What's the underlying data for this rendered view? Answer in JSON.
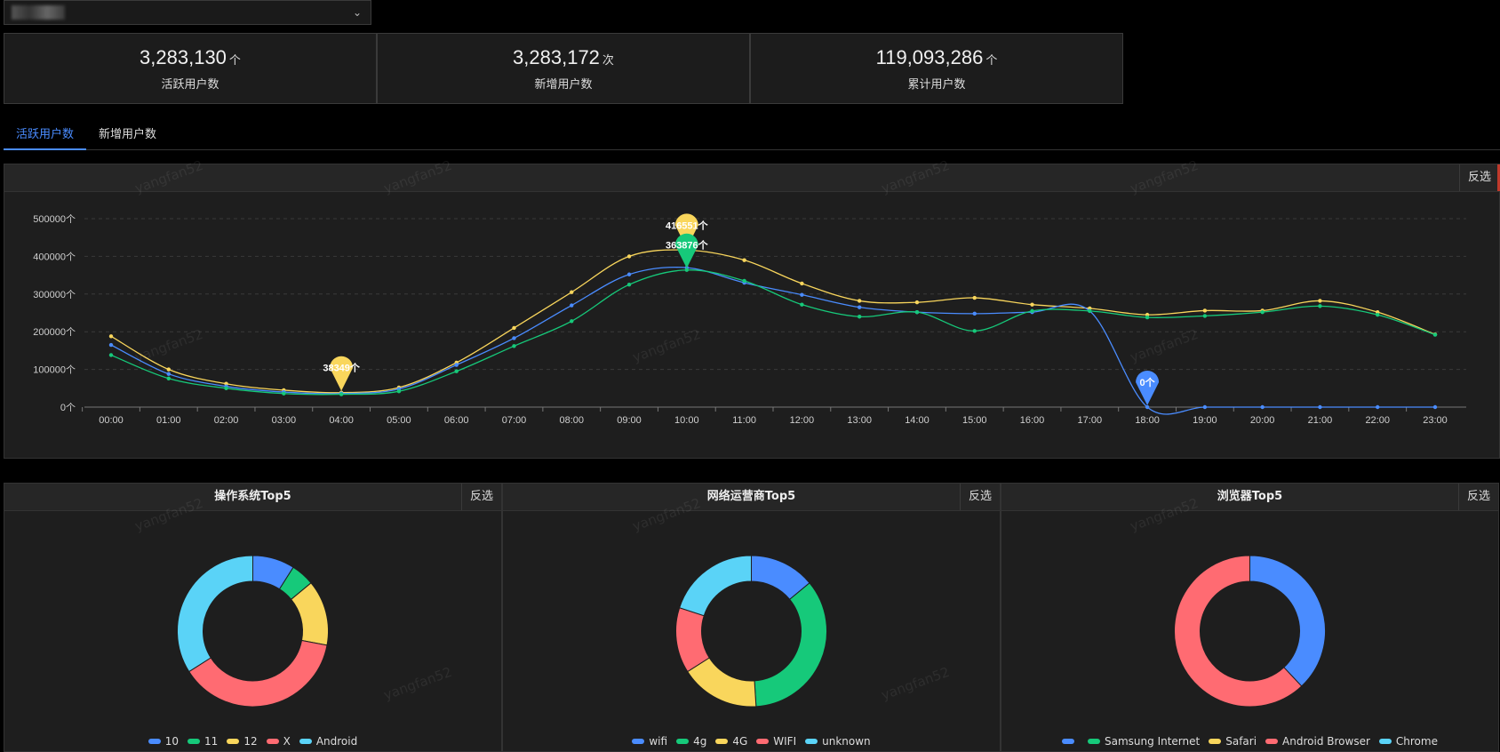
{
  "stats": [
    {
      "value": "3,283,130",
      "unit": "个",
      "label": "活跃用户数"
    },
    {
      "value": "3,283,172",
      "unit": "次",
      "label": "新增用户数"
    },
    {
      "value": "119,093,286",
      "unit": "个",
      "label": "累计用户数"
    }
  ],
  "tabs": [
    {
      "label": "活跃用户数",
      "active": true
    },
    {
      "label": "新增用户数",
      "active": false
    }
  ],
  "invert_label": "反选",
  "watermark": "yangfan52",
  "colors": {
    "blue": "#4a8cff",
    "green": "#16c97a",
    "yellow": "#f9d65c",
    "red": "#ff6b72",
    "cyan": "#5ad3f7"
  },
  "chart_data": [
    {
      "type": "line",
      "categories": [
        "00:00",
        "01:00",
        "02:00",
        "03:00",
        "04:00",
        "05:00",
        "06:00",
        "07:00",
        "08:00",
        "09:00",
        "10:00",
        "11:00",
        "12:00",
        "13:00",
        "14:00",
        "15:00",
        "16:00",
        "17:00",
        "18:00",
        "19:00",
        "20:00",
        "21:00",
        "22:00",
        "23:00"
      ],
      "yticks": [
        0,
        100000,
        200000,
        300000,
        400000,
        500000
      ],
      "ytick_suffix": "个",
      "ylim": [
        0,
        500000
      ],
      "series": [
        {
          "color": "#f9d65c",
          "values": [
            188000,
            100000,
            62000,
            45000,
            38349,
            52000,
            118000,
            210000,
            305000,
            400000,
            416551,
            390000,
            328000,
            282000,
            278000,
            290000,
            272000,
            262000,
            245000,
            256000,
            256000,
            282000,
            252000,
            193000
          ]
        },
        {
          "color": "#4a8cff",
          "values": [
            165000,
            88000,
            55000,
            40000,
            36000,
            48000,
            112000,
            183000,
            270000,
            352000,
            370000,
            330000,
            298000,
            265000,
            252000,
            248000,
            252000,
            255000,
            0,
            0,
            0,
            0,
            0,
            0
          ]
        },
        {
          "color": "#16c97a",
          "values": [
            138000,
            76000,
            50000,
            36000,
            34000,
            42000,
            95000,
            162000,
            228000,
            325000,
            363876,
            335000,
            272000,
            240000,
            252000,
            202000,
            255000,
            255000,
            238000,
            242000,
            252000,
            268000,
            245000,
            192000
          ]
        }
      ],
      "markers": [
        {
          "x": "04:00",
          "value": 38349,
          "label": "38349个",
          "color": "#f9d65c"
        },
        {
          "x": "10:00",
          "value": 416551,
          "label": "416551个",
          "color": "#f9d65c"
        },
        {
          "x": "10:00",
          "value": 363876,
          "label": "363876个",
          "color": "#16c97a"
        },
        {
          "x": "18:00",
          "value": 0,
          "label": "0个",
          "color": "#4a8cff"
        }
      ]
    },
    {
      "type": "pie",
      "title": "操作系统Top5",
      "labels": [
        "10",
        "11",
        "12",
        "X",
        "Android"
      ],
      "values": [
        9,
        5,
        14,
        38,
        34
      ],
      "colors": [
        "#4a8cff",
        "#16c97a",
        "#f9d65c",
        "#ff6b72",
        "#5ad3f7"
      ]
    },
    {
      "type": "pie",
      "title": "网络运营商Top5",
      "labels": [
        "wifi",
        "4g",
        "4G",
        "WIFI",
        "unknown"
      ],
      "values": [
        14,
        35,
        17,
        14,
        20
      ],
      "colors": [
        "#4a8cff",
        "#16c97a",
        "#f9d65c",
        "#ff6b72",
        "#5ad3f7"
      ]
    },
    {
      "type": "pie",
      "title": "浏览器Top5",
      "labels": [
        "",
        "Samsung Internet",
        "Safari",
        "Android Browser",
        "Chrome"
      ],
      "values": [
        38,
        0,
        0,
        62,
        0
      ],
      "colors": [
        "#4a8cff",
        "#16c97a",
        "#f9d65c",
        "#ff6b72",
        "#5ad3f7"
      ]
    }
  ]
}
